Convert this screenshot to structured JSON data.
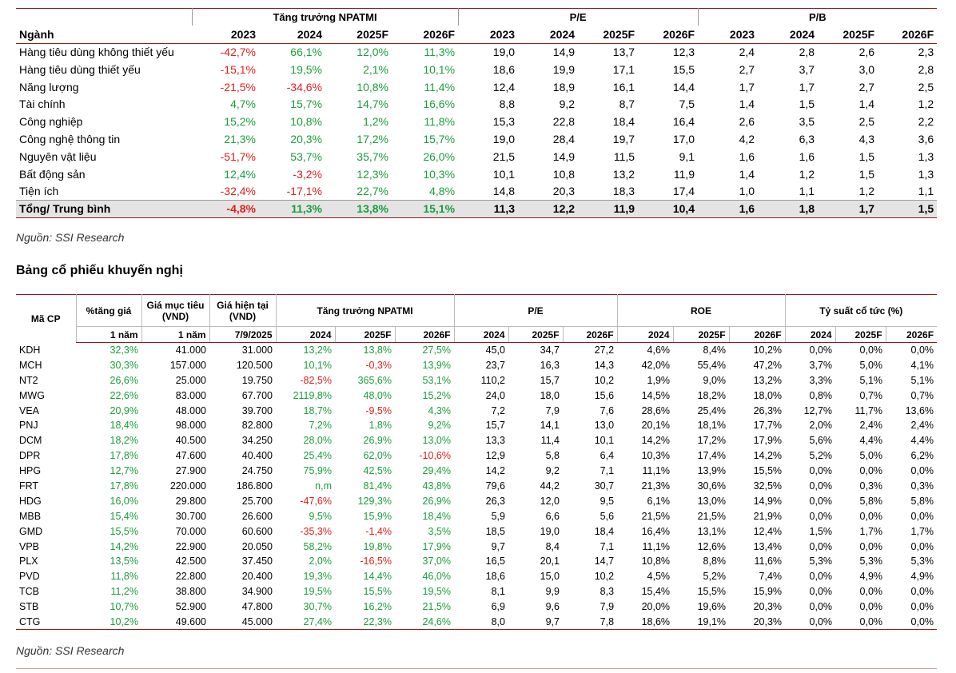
{
  "table1": {
    "groups": [
      "Tăng trưởng NPATMI",
      "P/E",
      "P/B"
    ],
    "header": [
      "Ngành",
      "2023",
      "2024",
      "2025F",
      "2026F",
      "2023",
      "2024",
      "2025F",
      "2026F",
      "2023",
      "2024",
      "2025F",
      "2026F"
    ],
    "rows": [
      [
        "Hàng tiêu dùng không thiết yếu",
        "-42,7%",
        "66,1%",
        "12,0%",
        "11,3%",
        "19,0",
        "14,9",
        "13,7",
        "12,3",
        "2,4",
        "2,8",
        "2,6",
        "2,3"
      ],
      [
        "Hàng tiêu dùng thiết yếu",
        "-15,1%",
        "19,5%",
        "2,1%",
        "10,1%",
        "18,6",
        "19,9",
        "17,1",
        "15,5",
        "2,7",
        "3,7",
        "3,0",
        "2,8"
      ],
      [
        "Năng lượng",
        "-21,5%",
        "-34,6%",
        "10,8%",
        "11,4%",
        "12,4",
        "18,9",
        "16,1",
        "14,4",
        "1,7",
        "1,7",
        "2,7",
        "2,5"
      ],
      [
        "Tài chính",
        "4,7%",
        "15,7%",
        "14,7%",
        "16,6%",
        "8,8",
        "9,2",
        "8,7",
        "7,5",
        "1,4",
        "1,5",
        "1,4",
        "1,2"
      ],
      [
        "Công nghiệp",
        "15,2%",
        "10,8%",
        "1,2%",
        "11,8%",
        "15,3",
        "22,8",
        "18,4",
        "16,4",
        "2,6",
        "3,5",
        "2,5",
        "2,2"
      ],
      [
        "Công nghệ thông tin",
        "21,3%",
        "20,3%",
        "17,2%",
        "15,7%",
        "19,0",
        "28,4",
        "19,7",
        "17,0",
        "4,2",
        "6,3",
        "4,3",
        "3,6"
      ],
      [
        "Nguyên vật liệu",
        "-51,7%",
        "53,7%",
        "35,7%",
        "26,0%",
        "21,5",
        "14,9",
        "11,5",
        "9,1",
        "1,6",
        "1,6",
        "1,5",
        "1,3"
      ],
      [
        "Bất động sản",
        "12,4%",
        "-3,2%",
        "12,3%",
        "10,3%",
        "10,1",
        "10,8",
        "13,2",
        "11,9",
        "1,4",
        "1,2",
        "1,5",
        "1,3"
      ],
      [
        "Tiện ích",
        "-32,4%",
        "-17,1%",
        "22,7%",
        "4,8%",
        "14,8",
        "20,3",
        "18,3",
        "17,4",
        "1,0",
        "1,1",
        "1,2",
        "1,1"
      ]
    ],
    "total": [
      "Tổng/ Trung bình",
      "-4,8%",
      "11,3%",
      "13,8%",
      "15,1%",
      "11,3",
      "12,2",
      "11,9",
      "10,4",
      "1,6",
      "1,8",
      "1,7",
      "1,5"
    ],
    "source": "Nguồn: SSI Research"
  },
  "title": "Bảng cổ phiếu khuyến nghị",
  "table2": {
    "lead_headers": [
      "Mã CP",
      "%tăng giá",
      "Giá mục tiêu (VND)",
      "Giá hiện tại (VND)"
    ],
    "groups": [
      "Tăng trưởng NPATMI",
      "P/E",
      "ROE",
      "Tỷ suất cổ tức (%)"
    ],
    "subheader": [
      "1 năm",
      "1 năm",
      "7/9/2025",
      "2024",
      "2025F",
      "2026F",
      "2024",
      "2025F",
      "2026F",
      "2024",
      "2025F",
      "2026F",
      "2024",
      "2025F",
      "2026F"
    ],
    "rows": [
      [
        "KDH",
        "32,3%",
        "41.000",
        "31.000",
        "13,2%",
        "13,8%",
        "27,5%",
        "45,0",
        "34,7",
        "27,2",
        "4,6%",
        "8,4%",
        "10,2%",
        "0,0%",
        "0,0%",
        "0,0%"
      ],
      [
        "MCH",
        "30,3%",
        "157.000",
        "120.500",
        "10,1%",
        "-0,3%",
        "13,9%",
        "23,7",
        "16,3",
        "14,3",
        "42,0%",
        "55,4%",
        "47,2%",
        "3,7%",
        "5,0%",
        "4,1%"
      ],
      [
        "NT2",
        "26,6%",
        "25.000",
        "19.750",
        "-82,5%",
        "365,6%",
        "53,1%",
        "110,2",
        "15,7",
        "10,2",
        "1,9%",
        "9,0%",
        "13,2%",
        "3,3%",
        "5,1%",
        "5,1%"
      ],
      [
        "MWG",
        "22,6%",
        "83.000",
        "67.700",
        "2119,8%",
        "48,0%",
        "15,2%",
        "24,0",
        "18,0",
        "15,6",
        "14,5%",
        "18,2%",
        "18,0%",
        "0,8%",
        "0,7%",
        "0,7%"
      ],
      [
        "VEA",
        "20,9%",
        "48.000",
        "39.700",
        "18,7%",
        "-9,5%",
        "4,3%",
        "7,2",
        "7,9",
        "7,6",
        "28,6%",
        "25,4%",
        "26,3%",
        "12,7%",
        "11,7%",
        "13,6%"
      ],
      [
        "PNJ",
        "18,4%",
        "98.000",
        "82.800",
        "7,2%",
        "1,8%",
        "9,2%",
        "15,7",
        "14,1",
        "13,0",
        "20,1%",
        "18,1%",
        "17,7%",
        "2,0%",
        "2,4%",
        "2,4%"
      ],
      [
        "DCM",
        "18,2%",
        "40.500",
        "34.250",
        "28,0%",
        "26,9%",
        "13,0%",
        "13,3",
        "11,4",
        "10,1",
        "14,2%",
        "17,2%",
        "17,9%",
        "5,6%",
        "4,4%",
        "4,4%"
      ],
      [
        "DPR",
        "17,8%",
        "47.600",
        "40.400",
        "25,4%",
        "62,0%",
        "-10,6%",
        "12,9",
        "5,8",
        "6,4",
        "10,3%",
        "17,4%",
        "14,2%",
        "5,2%",
        "5,0%",
        "6,2%"
      ],
      [
        "HPG",
        "12,7%",
        "27.900",
        "24.750",
        "75,9%",
        "42,5%",
        "29,4%",
        "14,2",
        "9,2",
        "7,1",
        "11,1%",
        "13,9%",
        "15,5%",
        "0,0%",
        "0,0%",
        "0,0%"
      ],
      [
        "FRT",
        "17,8%",
        "220.000",
        "186.800",
        "n,m",
        "81,4%",
        "43,8%",
        "79,6",
        "44,2",
        "30,7",
        "21,3%",
        "30,6%",
        "32,5%",
        "0,0%",
        "0,3%",
        "0,3%"
      ],
      [
        "HDG",
        "16,0%",
        "29.800",
        "25.700",
        "-47,6%",
        "129,3%",
        "26,9%",
        "26,3",
        "12,0",
        "9,5",
        "6,1%",
        "13,0%",
        "14,9%",
        "0,0%",
        "5,8%",
        "5,8%"
      ],
      [
        "MBB",
        "15,4%",
        "30.700",
        "26.600",
        "9,5%",
        "15,9%",
        "18,4%",
        "5,9",
        "6,6",
        "5,6",
        "21,5%",
        "21,5%",
        "21,9%",
        "0,0%",
        "0,0%",
        "0,0%"
      ],
      [
        "GMD",
        "15,5%",
        "70.000",
        "60.600",
        "-35,3%",
        "-1,4%",
        "3,5%",
        "18,5",
        "19,0",
        "18,4",
        "16,4%",
        "13,1%",
        "12,4%",
        "1,5%",
        "1,7%",
        "1,7%"
      ],
      [
        "VPB",
        "14,2%",
        "22.900",
        "20.050",
        "58,2%",
        "19,8%",
        "17,9%",
        "9,7",
        "8,4",
        "7,1",
        "11,1%",
        "12,6%",
        "13,4%",
        "0,0%",
        "0,0%",
        "0,0%"
      ],
      [
        "PLX",
        "13,5%",
        "42.500",
        "37.450",
        "2,0%",
        "-16,5%",
        "37,0%",
        "16,5",
        "20,1",
        "14,7",
        "10,8%",
        "8,8%",
        "11,6%",
        "5,3%",
        "5,3%",
        "5,3%"
      ],
      [
        "PVD",
        "11,8%",
        "22.800",
        "20.400",
        "19,3%",
        "14,4%",
        "46,0%",
        "18,6",
        "15,0",
        "10,2",
        "4,5%",
        "5,2%",
        "7,4%",
        "0,0%",
        "4,9%",
        "4,9%"
      ],
      [
        "TCB",
        "11,2%",
        "38.800",
        "34.900",
        "19,5%",
        "15,5%",
        "19,5%",
        "8,1",
        "9,9",
        "8,3",
        "15,4%",
        "15,5%",
        "15,9%",
        "0,0%",
        "0,0%",
        "0,0%"
      ],
      [
        "STB",
        "10,7%",
        "52.900",
        "47.800",
        "30,7%",
        "16,2%",
        "21,5%",
        "6,9",
        "9,6",
        "7,9",
        "20,0%",
        "19,6%",
        "20,3%",
        "0,0%",
        "0,0%",
        "0,0%"
      ],
      [
        "CTG",
        "10,2%",
        "49.600",
        "45.000",
        "27,4%",
        "22,3%",
        "24,6%",
        "8,0",
        "9,7",
        "7,8",
        "18,6%",
        "19,1%",
        "20,3%",
        "0,0%",
        "0,0%",
        "0,0%"
      ]
    ],
    "source": "Nguồn: SSI Research"
  }
}
